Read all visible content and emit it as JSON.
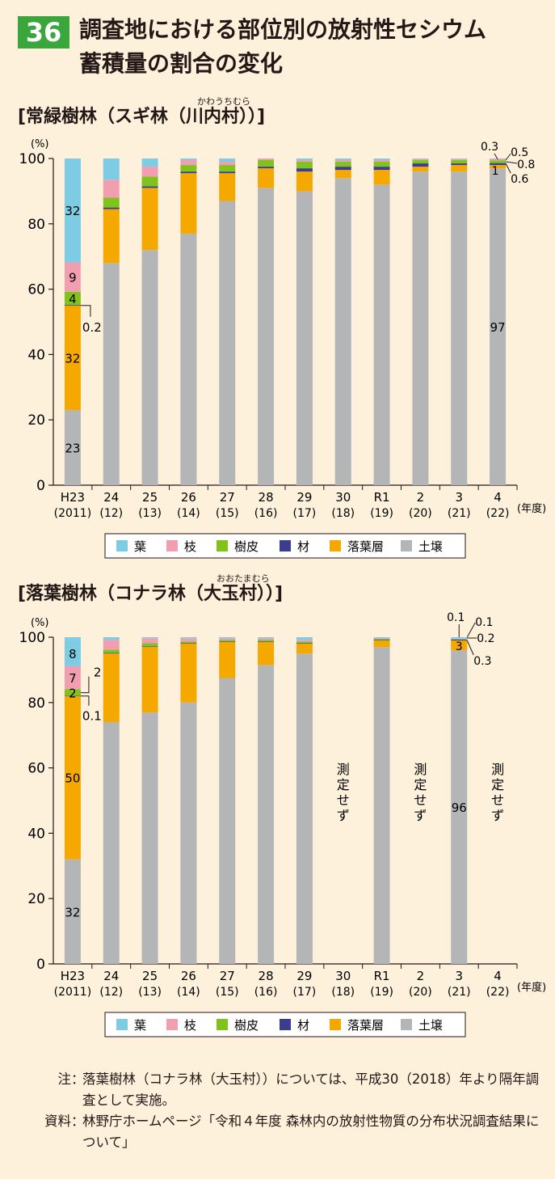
{
  "header": {
    "badge": "36",
    "title_line1": "調査地における部位別の放射性セシウム",
    "title_line2": "蓄積量の割合の変化"
  },
  "legend": [
    {
      "name": "葉",
      "color": "#7ecbe4"
    },
    {
      "name": "枝",
      "color": "#f19fb0"
    },
    {
      "name": "樹皮",
      "color": "#7fc31c"
    },
    {
      "name": "材",
      "color": "#3c3d8f"
    },
    {
      "name": "落葉層",
      "color": "#f5a800"
    },
    {
      "name": "土壌",
      "color": "#b4b5b6"
    }
  ],
  "notes": [
    {
      "label": "注",
      "text": "落葉樹林（コナラ林（大玉村））については、平成30（2018）年より隔年調査として実施。"
    },
    {
      "label": "資料",
      "text": "林野庁ホームページ「令和４年度 森林内の放射性物質の分布状況調査結果について」"
    }
  ],
  "chart_data": [
    {
      "type": "bar",
      "stacked": true,
      "title": "[常緑樹林（スギ林（川内村））]",
      "title_ruby": "かわうちむら",
      "ylabel": "(%)",
      "xlabel": "(年度)",
      "ylim": [
        0,
        100
      ],
      "yticks": [
        0,
        20,
        40,
        60,
        80,
        100
      ],
      "categories": [
        "H23",
        "24",
        "25",
        "26",
        "27",
        "28",
        "29",
        "30",
        "R1",
        "2",
        "3",
        "4"
      ],
      "categories_sub": [
        "(2011)",
        "(12)",
        "(13)",
        "(14)",
        "(15)",
        "(16)",
        "(17)",
        "(18)",
        "(19)",
        "(20)",
        "(21)",
        "(22)"
      ],
      "series": [
        {
          "name": "土壌",
          "values": [
            23,
            68,
            72,
            77,
            87,
            91,
            90,
            94,
            92,
            96,
            96,
            97
          ]
        },
        {
          "name": "落葉層",
          "values": [
            32,
            16.5,
            19,
            18.5,
            8.5,
            6,
            6,
            2.5,
            4.5,
            1.5,
            2,
            1
          ]
        },
        {
          "name": "材",
          "values": [
            0.2,
            0.5,
            0.5,
            0.5,
            0.5,
            0.5,
            1,
            1,
            1,
            1,
            0.5,
            0.6
          ]
        },
        {
          "name": "樹皮",
          "values": [
            4,
            3,
            3,
            2,
            2,
            2,
            2,
            1.5,
            1.5,
            1,
            1,
            0.8
          ]
        },
        {
          "name": "枝",
          "values": [
            9,
            5.5,
            3,
            1.5,
            1,
            0.5,
            0.5,
            0.5,
            0.5,
            0.3,
            0.3,
            0.5
          ]
        },
        {
          "name": "葉",
          "values": [
            32,
            6.5,
            2.5,
            0.5,
            1,
            0,
            0.5,
            0.5,
            0.5,
            0.2,
            0.2,
            0.3
          ]
        }
      ],
      "measured": [
        true,
        true,
        true,
        true,
        true,
        true,
        true,
        true,
        true,
        true,
        true,
        true
      ],
      "annotations": {
        "first_bar": {
          "土壌": "23",
          "落葉層": "32",
          "材": "0.2",
          "樹皮": "4",
          "枝": "9",
          "葉": "32"
        },
        "last_bar": {
          "土壌": "97",
          "落葉層": "1",
          "材": "0.6",
          "樹皮": "0.8",
          "枝": "0.5",
          "葉": "0.3"
        }
      }
    },
    {
      "type": "bar",
      "stacked": true,
      "title": "[落葉樹林（コナラ林（大玉村））]",
      "title_ruby": "おおたまむら",
      "ylabel": "(%)",
      "xlabel": "(年度)",
      "ylim": [
        0,
        100
      ],
      "yticks": [
        0,
        20,
        40,
        60,
        80,
        100
      ],
      "categories": [
        "H23",
        "24",
        "25",
        "26",
        "27",
        "28",
        "29",
        "30",
        "R1",
        "2",
        "3",
        "4"
      ],
      "categories_sub": [
        "(2011)",
        "(12)",
        "(13)",
        "(14)",
        "(15)",
        "(16)",
        "(17)",
        "(18)",
        "(19)",
        "(20)",
        "(21)",
        "(22)"
      ],
      "not_measured_label": "測定せず",
      "series": [
        {
          "name": "土壌",
          "values": [
            32,
            74,
            77,
            80,
            87.5,
            91.5,
            95,
            0,
            97,
            0,
            96,
            0
          ]
        },
        {
          "name": "落葉層",
          "values": [
            50,
            21,
            20,
            18,
            11,
            7,
            3,
            0,
            2,
            0,
            3,
            0
          ]
        },
        {
          "name": "材",
          "values": [
            0.1,
            0.2,
            0.2,
            0.2,
            0.2,
            0.2,
            0.2,
            0,
            0.2,
            0,
            0.3,
            0
          ]
        },
        {
          "name": "樹皮",
          "values": [
            2,
            1,
            1,
            0.5,
            0.5,
            0.5,
            0.5,
            0,
            0.3,
            0,
            0.2,
            0
          ]
        },
        {
          "name": "枝",
          "values": [
            7,
            3,
            1.5,
            1,
            0.5,
            0.5,
            0.5,
            0,
            0.2,
            0,
            0.1,
            0
          ]
        },
        {
          "name": "葉",
          "values": [
            8,
            0.8,
            0.3,
            0.3,
            0.3,
            0.3,
            0.3,
            0,
            0.3,
            0,
            0.1,
            0
          ]
        }
      ],
      "measured": [
        true,
        true,
        true,
        true,
        true,
        true,
        true,
        false,
        true,
        false,
        true,
        false
      ],
      "annotations": {
        "first_bar": {
          "土壌": "32",
          "落葉層": "50",
          "材": "0.1",
          "樹皮": "2",
          "枝": "7",
          "葉": "8"
        },
        "last_bar": {
          "土壌": "96",
          "落葉層": "3",
          "材": "0.3",
          "樹皮": "0.2",
          "枝": "0.1",
          "葉": "0.1"
        }
      }
    }
  ]
}
